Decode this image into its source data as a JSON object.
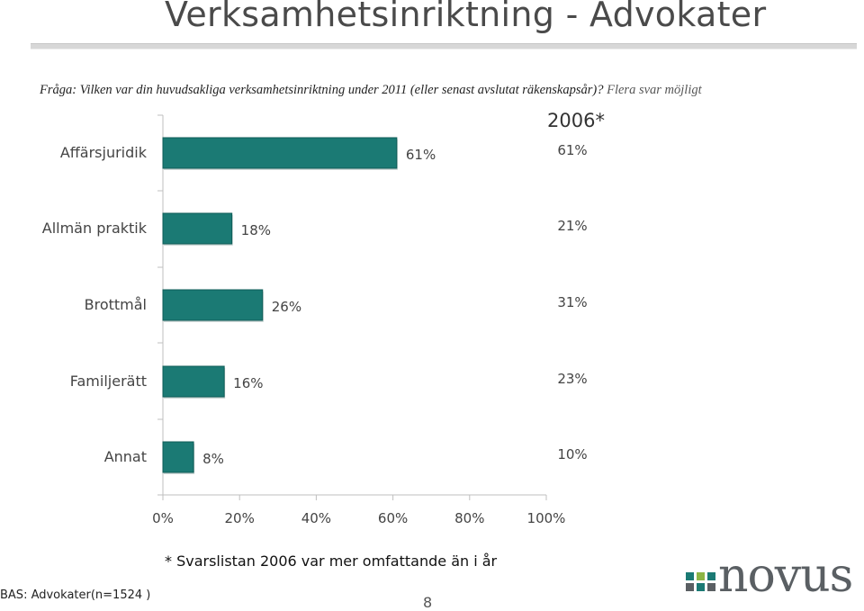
{
  "title": "Verksamhetsinriktning - Advokater",
  "question": {
    "lead": "Fråga: Vilken var din huvudsakliga verksamhetsinriktning under 2011 (eller senast avslutat räkenskapsår)?",
    "tail": "Flera svar möjligt"
  },
  "comparison_header": "2006*",
  "footnote": "* Svarslistan 2006 var mer omfattande än i år",
  "base_note": "BAS: Advokater(n=1524 )",
  "page_number": "8",
  "logo": {
    "text": "novus"
  },
  "colors": {
    "bar_fill": "#1b7a74",
    "bar_edge": "#0f5c57",
    "axis": "#bfbfbf",
    "logo_teal": "#1b7a74",
    "logo_green": "#8db545",
    "logo_grey": "#5a5f63"
  },
  "chart_data": {
    "type": "bar",
    "orientation": "horizontal",
    "categories": [
      "Affärsjuridik",
      "Allmän praktik",
      "Brottmål",
      "Familjerätt",
      "Annat"
    ],
    "values": [
      61,
      18,
      26,
      16,
      8
    ],
    "value_labels": [
      "61%",
      "18%",
      "26%",
      "16%",
      "8%"
    ],
    "comparison": {
      "name": "2006*",
      "values": [
        61,
        21,
        31,
        23,
        10
      ],
      "labels": [
        "61%",
        "21%",
        "31%",
        "23%",
        "10%"
      ]
    },
    "xlim": [
      0,
      100
    ],
    "ticks": [
      0,
      20,
      40,
      60,
      80,
      100
    ],
    "tick_labels": [
      "0%",
      "20%",
      "40%",
      "60%",
      "80%",
      "100%"
    ],
    "grid": false
  }
}
